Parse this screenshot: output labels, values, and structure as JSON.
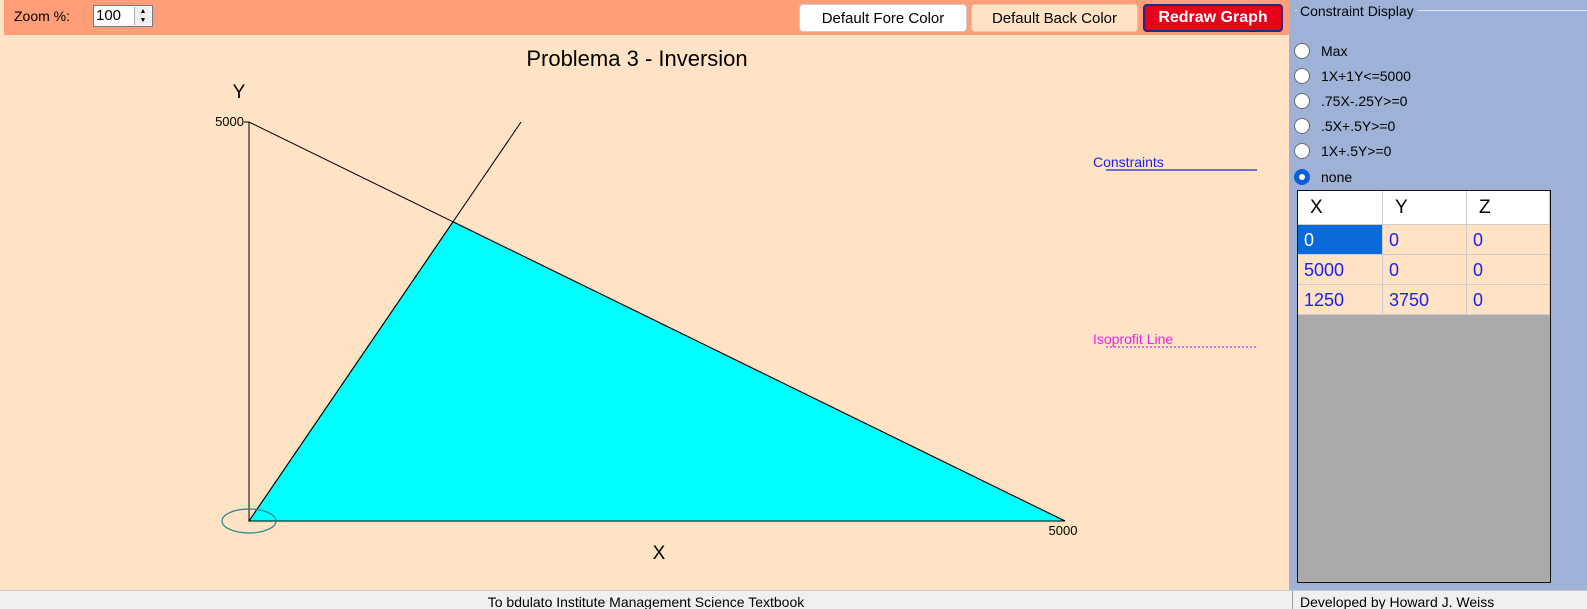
{
  "toolbar": {
    "zoom_label": "Zoom %:",
    "zoom_value": "100",
    "default_fore_color": "Default Fore Color",
    "default_back_color": "Default Back Color",
    "redraw_graph": "Redraw Graph"
  },
  "graph": {
    "title": "Problema 3 - Inversion",
    "x_axis_label": "X",
    "y_axis_label": "Y",
    "x_max_label": "5000",
    "y_max_label": "5000",
    "legend_constraints": "Constraints",
    "legend_isoprofit": "Isoprofit Line",
    "feasible_color": "#00ffff",
    "constraint_color": "#1a22ee",
    "isoprofit_color": "#ee22ee"
  },
  "chart_data": {
    "type": "line",
    "title": "Problema 3 - Inversion",
    "xlabel": "X",
    "ylabel": "Y",
    "xlim": [
      0,
      5000
    ],
    "ylim": [
      0,
      5000
    ],
    "feasible_region": [
      [
        0,
        0
      ],
      [
        5000,
        0
      ],
      [
        1250,
        3750
      ]
    ],
    "constraint_lines": [
      {
        "name": "1X+1Y<=5000",
        "points": [
          [
            0,
            5000
          ],
          [
            5000,
            0
          ]
        ]
      },
      {
        "name": ".75X-.25Y>=0",
        "points": [
          [
            0,
            0
          ],
          [
            1667,
            5000
          ]
        ]
      }
    ]
  },
  "constraint_display": {
    "title": "Constraint Display",
    "options": [
      "Max",
      "1X+1Y<=5000",
      ".75X-.25Y>=0",
      ".5X+.5Y>=0",
      "1X+.5Y>=0",
      "none"
    ],
    "selected": "none"
  },
  "vertex_table": {
    "headers": [
      "X",
      "Y",
      "Z"
    ],
    "rows": [
      [
        "0",
        "0",
        "0"
      ],
      [
        "5000",
        "0",
        "0"
      ],
      [
        "1250",
        "3750",
        "0"
      ]
    ]
  },
  "status": {
    "left": "To bdulato Institute Management Science Textbook",
    "right": "Developed by Howard J. Weiss"
  }
}
